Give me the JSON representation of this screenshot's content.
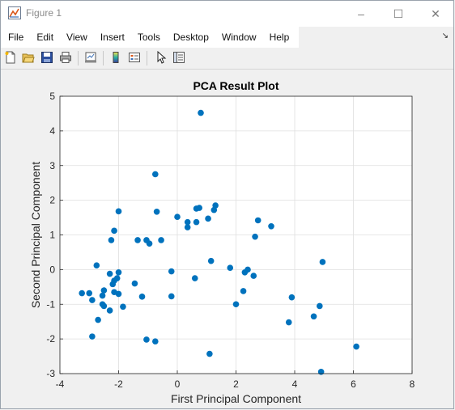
{
  "window": {
    "title": "Figure 1",
    "minimize_glyph": "–",
    "maximize_glyph": "☐",
    "close_glyph": "✕"
  },
  "menu": {
    "items": [
      "File",
      "Edit",
      "View",
      "Insert",
      "Tools",
      "Desktop",
      "Window",
      "Help"
    ],
    "dock_glyph": "↘"
  },
  "toolbar": {
    "icons": [
      "new-figure-icon",
      "open-file-icon",
      "save-icon",
      "print-icon",
      "link-plot-icon",
      "insert-colorbar-icon",
      "insert-legend-icon",
      "edit-plot-icon",
      "property-inspector-icon"
    ]
  },
  "colors": {
    "marker": "#0072bd",
    "grid": "#dfdfdf",
    "axes_bg": "#ffffff"
  },
  "chart_data": {
    "type": "scatter",
    "title": "PCA Result Plot",
    "xlabel": "First Principal Component",
    "ylabel": "Second Principal Component",
    "xlim": [
      -4,
      8
    ],
    "ylim": [
      -3,
      5
    ],
    "xticks": [
      -4,
      -2,
      0,
      2,
      4,
      6,
      8
    ],
    "yticks": [
      -3,
      -2,
      -1,
      0,
      1,
      2,
      3,
      4,
      5
    ],
    "grid": true,
    "points": [
      {
        "x": 0.8,
        "y": 4.52
      },
      {
        "x": -0.75,
        "y": 2.75
      },
      {
        "x": 1.3,
        "y": 1.85
      },
      {
        "x": 1.25,
        "y": 1.72
      },
      {
        "x": 0.75,
        "y": 1.78
      },
      {
        "x": 0.65,
        "y": 1.76
      },
      {
        "x": -2.0,
        "y": 1.68
      },
      {
        "x": -0.7,
        "y": 1.67
      },
      {
        "x": 0.0,
        "y": 1.52
      },
      {
        "x": 1.05,
        "y": 1.47
      },
      {
        "x": 2.75,
        "y": 1.42
      },
      {
        "x": 0.35,
        "y": 1.37
      },
      {
        "x": 0.65,
        "y": 1.37
      },
      {
        "x": 3.2,
        "y": 1.25
      },
      {
        "x": 0.35,
        "y": 1.22
      },
      {
        "x": -2.15,
        "y": 1.12
      },
      {
        "x": 2.65,
        "y": 0.95
      },
      {
        "x": -2.25,
        "y": 0.85
      },
      {
        "x": -1.35,
        "y": 0.85
      },
      {
        "x": -1.05,
        "y": 0.85
      },
      {
        "x": -0.55,
        "y": 0.85
      },
      {
        "x": -0.95,
        "y": 0.75
      },
      {
        "x": 1.15,
        "y": 0.25
      },
      {
        "x": 4.95,
        "y": 0.22
      },
      {
        "x": -2.75,
        "y": 0.12
      },
      {
        "x": 1.8,
        "y": 0.05
      },
      {
        "x": 2.4,
        "y": 0.0
      },
      {
        "x": -0.2,
        "y": -0.05
      },
      {
        "x": -2.0,
        "y": -0.08
      },
      {
        "x": 2.3,
        "y": -0.08
      },
      {
        "x": -2.3,
        "y": -0.12
      },
      {
        "x": 2.6,
        "y": -0.18
      },
      {
        "x": -2.05,
        "y": -0.25
      },
      {
        "x": 0.6,
        "y": -0.25
      },
      {
        "x": -2.15,
        "y": -0.32
      },
      {
        "x": -2.2,
        "y": -0.42
      },
      {
        "x": -1.45,
        "y": -0.4
      },
      {
        "x": -2.5,
        "y": -0.6
      },
      {
        "x": 2.25,
        "y": -0.62
      },
      {
        "x": -2.15,
        "y": -0.65
      },
      {
        "x": -2.0,
        "y": -0.7
      },
      {
        "x": -3.25,
        "y": -0.68
      },
      {
        "x": -3.0,
        "y": -0.68
      },
      {
        "x": -2.55,
        "y": -0.75
      },
      {
        "x": -0.2,
        "y": -0.77
      },
      {
        "x": -1.2,
        "y": -0.78
      },
      {
        "x": 3.9,
        "y": -0.8
      },
      {
        "x": -2.9,
        "y": -0.88
      },
      {
        "x": -2.55,
        "y": -1.0
      },
      {
        "x": 2.0,
        "y": -1.0
      },
      {
        "x": -2.5,
        "y": -1.05
      },
      {
        "x": -1.85,
        "y": -1.07
      },
      {
        "x": 4.85,
        "y": -1.05
      },
      {
        "x": -2.3,
        "y": -1.18
      },
      {
        "x": 4.65,
        "y": -1.35
      },
      {
        "x": -2.7,
        "y": -1.45
      },
      {
        "x": 3.8,
        "y": -1.52
      },
      {
        "x": -2.9,
        "y": -1.93
      },
      {
        "x": -1.05,
        "y": -2.02
      },
      {
        "x": -0.75,
        "y": -2.07
      },
      {
        "x": 6.1,
        "y": -2.22
      },
      {
        "x": 1.1,
        "y": -2.43
      },
      {
        "x": 4.9,
        "y": -2.95
      }
    ]
  }
}
